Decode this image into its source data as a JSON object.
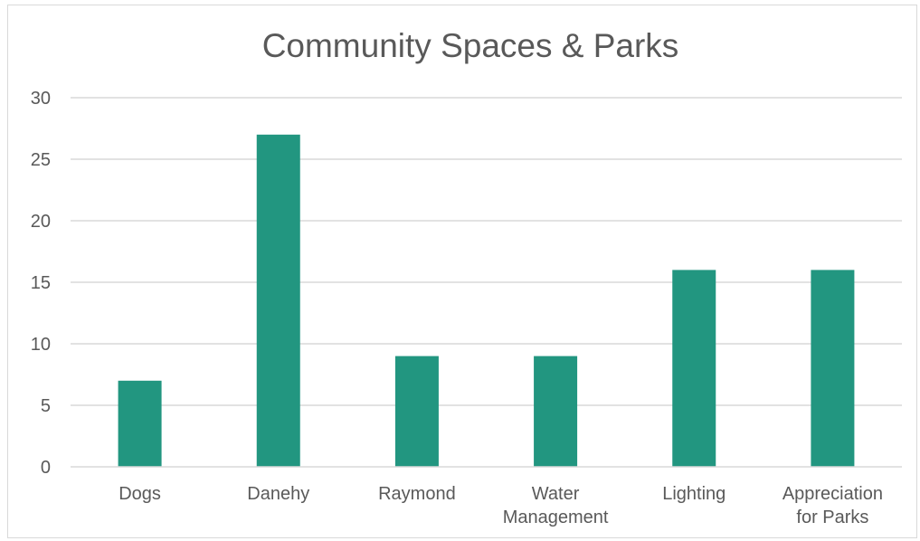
{
  "chart_data": {
    "type": "bar",
    "title": "Community Spaces & Parks",
    "categories": [
      "Dogs",
      "Danehy",
      "Raymond",
      "Water Management",
      "Lighting",
      "Appreciation for Parks"
    ],
    "category_lines": [
      [
        "Dogs"
      ],
      [
        "Danehy"
      ],
      [
        "Raymond"
      ],
      [
        "Water",
        "Management"
      ],
      [
        "Lighting"
      ],
      [
        "Appreciation",
        "for Parks"
      ]
    ],
    "values": [
      7,
      27,
      9,
      9,
      16,
      16
    ],
    "xlabel": "",
    "ylabel": "",
    "ylim": [
      0,
      30
    ],
    "yticks": [
      0,
      5,
      10,
      15,
      20,
      25,
      30
    ],
    "grid": true,
    "legend": "none",
    "bar_color": "#229680",
    "grid_color": "#d9d9d9"
  }
}
